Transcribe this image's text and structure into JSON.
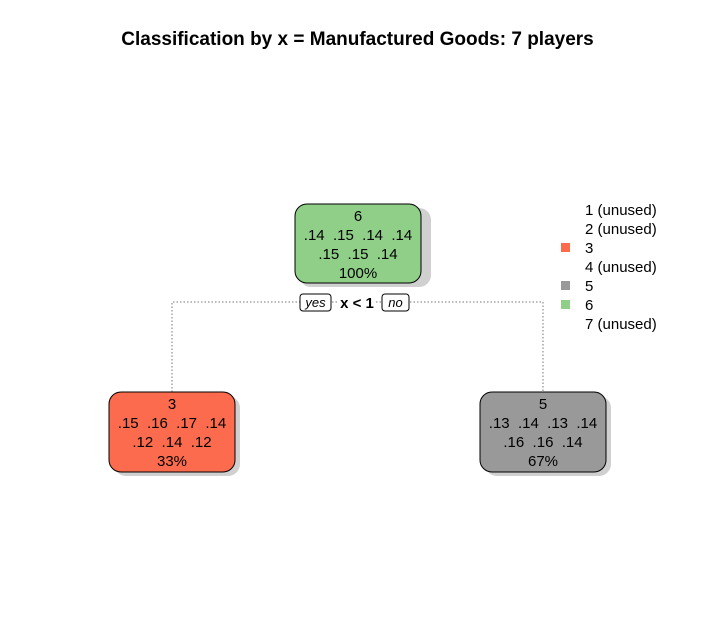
{
  "title": "Classification by x = Manufactured Goods: 7 players",
  "colors": {
    "class3": "#fc6b4d",
    "class5": "#999999",
    "class6": "#8fcf88",
    "edge": "#777777",
    "shadow": "#d0d0d0"
  },
  "tree": {
    "root": {
      "class": "6",
      "probs_row1": ".14  .15  .14  .14",
      "probs_row2": ".15  .15  .14",
      "percent": "100%"
    },
    "split": {
      "label": "x < 1",
      "yes": "yes",
      "no": "no"
    },
    "left": {
      "class": "3",
      "probs_row1": ".15  .16  .17  .14",
      "probs_row2": ".12  .14  .12",
      "percent": "33%"
    },
    "right": {
      "class": "5",
      "probs_row1": ".13  .14  .13  .14",
      "probs_row2": ".16  .16  .14",
      "percent": "67%"
    }
  },
  "legend": [
    {
      "label": "1 (unused)",
      "color": null
    },
    {
      "label": "2 (unused)",
      "color": null
    },
    {
      "label": "3",
      "color": "#fc6b4d"
    },
    {
      "label": "4 (unused)",
      "color": null
    },
    {
      "label": "5",
      "color": "#999999"
    },
    {
      "label": "6",
      "color": "#8fcf88"
    },
    {
      "label": "7 (unused)",
      "color": null
    }
  ]
}
